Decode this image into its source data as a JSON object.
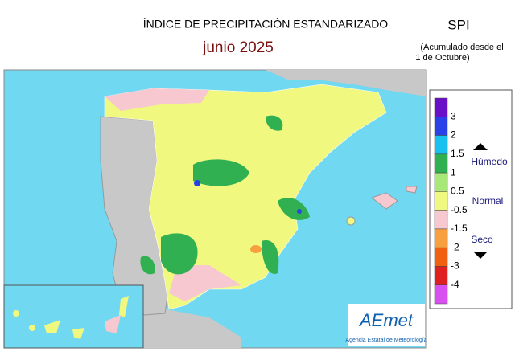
{
  "header": {
    "title": "ÍNDICE DE PRECIPITACIÓN ESTANDARIZADO",
    "subtitle": "junio  2025",
    "index": "SPI",
    "note_line1": "(Acumulado desde el",
    "note_line2": "1 de Octubre)"
  },
  "legend": {
    "ticks": [
      3,
      2,
      1.5,
      1,
      0.5,
      -0.5,
      -1.5,
      -2,
      -3,
      -4
    ],
    "colors": [
      "#6a10c8",
      "#2a40e8",
      "#18c0f0",
      "#30b050",
      "#a8e878",
      "#f0f880",
      "#f8c8d0",
      "#f8a040",
      "#f06010",
      "#e02020",
      "#d850f0"
    ],
    "wet": "Húmedo",
    "normal": "Normal",
    "dry": "Seco"
  },
  "logo": {
    "name": "AEmet",
    "subtitle": "Agencia Estatal de Meteorología"
  }
}
